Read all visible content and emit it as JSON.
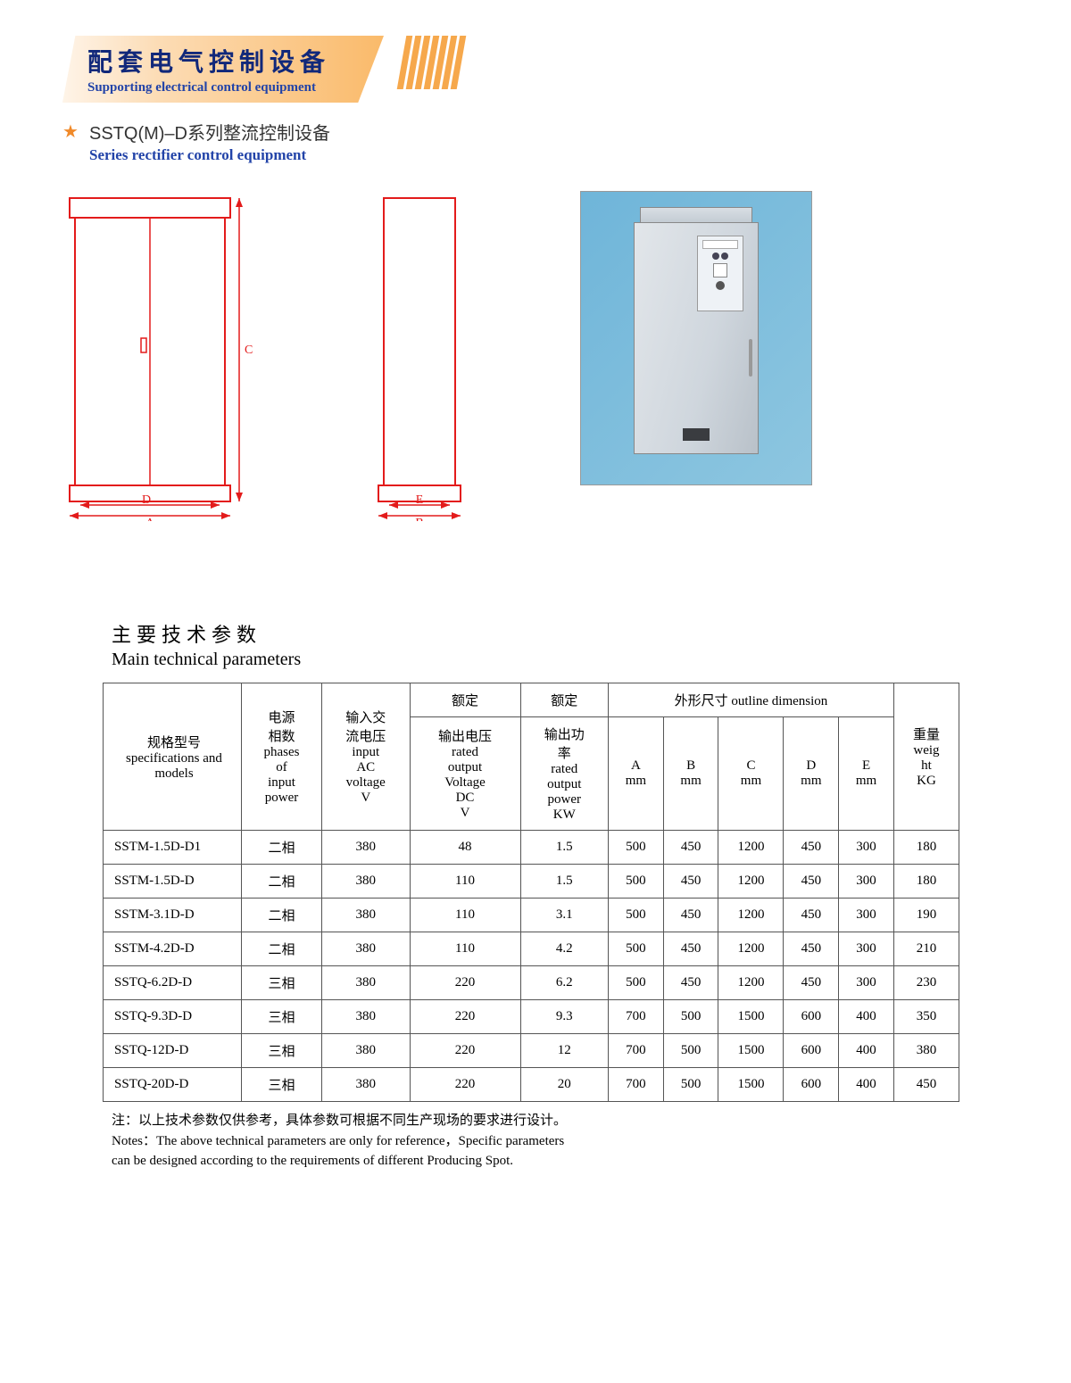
{
  "header": {
    "title_cn": "配套电气控制设备",
    "title_en": "Supporting electrical control equipment",
    "sub_cn": "SSTQ(M)–D系列整流控制设备",
    "sub_en": "Series rectifier control equipment"
  },
  "diagrams": {
    "front": {
      "dim_bottom_outer": "A",
      "dim_bottom_inner": "D",
      "dim_height": "C"
    },
    "side": {
      "dim_bottom_outer": "B",
      "dim_bottom_inner": "E"
    },
    "stroke": "#e31b1b",
    "fill": "#ffffff"
  },
  "section": {
    "title_cn": "主要技术参数",
    "title_en": "Main technical parameters"
  },
  "table": {
    "headers": {
      "spec": "规格型号\nspecifications and models",
      "phases": "电源相数\nphases of input power",
      "ac": "输入交流电压\ninput AC voltage\nV",
      "dc_top": "额定",
      "dc": "输出电压\nrated output Voltage DC\nV",
      "kw_top": "额定",
      "kw": "输出功率\nrated output power\nKW",
      "dim": "外形尺寸 outline dimension",
      "A": "A\nmm",
      "B": "B\nmm",
      "C": "C\nmm",
      "D": "D\nmm",
      "E": "E\nmm",
      "wt": "重量\nweight\nKG"
    },
    "rows": [
      [
        "SSTM-1.5D-D1",
        "二相",
        "380",
        "48",
        "1.5",
        "500",
        "450",
        "1200",
        "450",
        "300",
        "180"
      ],
      [
        "SSTM-1.5D-D",
        "二相",
        "380",
        "110",
        "1.5",
        "500",
        "450",
        "1200",
        "450",
        "300",
        "180"
      ],
      [
        "SSTM-3.1D-D",
        "二相",
        "380",
        "110",
        "3.1",
        "500",
        "450",
        "1200",
        "450",
        "300",
        "190"
      ],
      [
        "SSTM-4.2D-D",
        "二相",
        "380",
        "110",
        "4.2",
        "500",
        "450",
        "1200",
        "450",
        "300",
        "210"
      ],
      [
        "SSTQ-6.2D-D",
        "三相",
        "380",
        "220",
        "6.2",
        "500",
        "450",
        "1200",
        "450",
        "300",
        "230"
      ],
      [
        "SSTQ-9.3D-D",
        "三相",
        "380",
        "220",
        "9.3",
        "700",
        "500",
        "1500",
        "600",
        "400",
        "350"
      ],
      [
        "SSTQ-12D-D",
        "三相",
        "380",
        "220",
        "12",
        "700",
        "500",
        "1500",
        "600",
        "400",
        "380"
      ],
      [
        "SSTQ-20D-D",
        "三相",
        "380",
        "220",
        "20",
        "700",
        "500",
        "1500",
        "600",
        "400",
        "450"
      ]
    ]
  },
  "notes": {
    "l1": "注：以上技术参数仅供参考，具体参数可根据不同生产现场的要求进行设计。",
    "l2": "Notes：The above technical parameters are only for reference，Specific parameters",
    "l3": "can be designed according to the requirements of different   Producing Spot."
  },
  "colors": {
    "accent_blue": "#11287a",
    "accent_orange": "#f08a2a",
    "dim_stroke": "#e31b1b"
  }
}
